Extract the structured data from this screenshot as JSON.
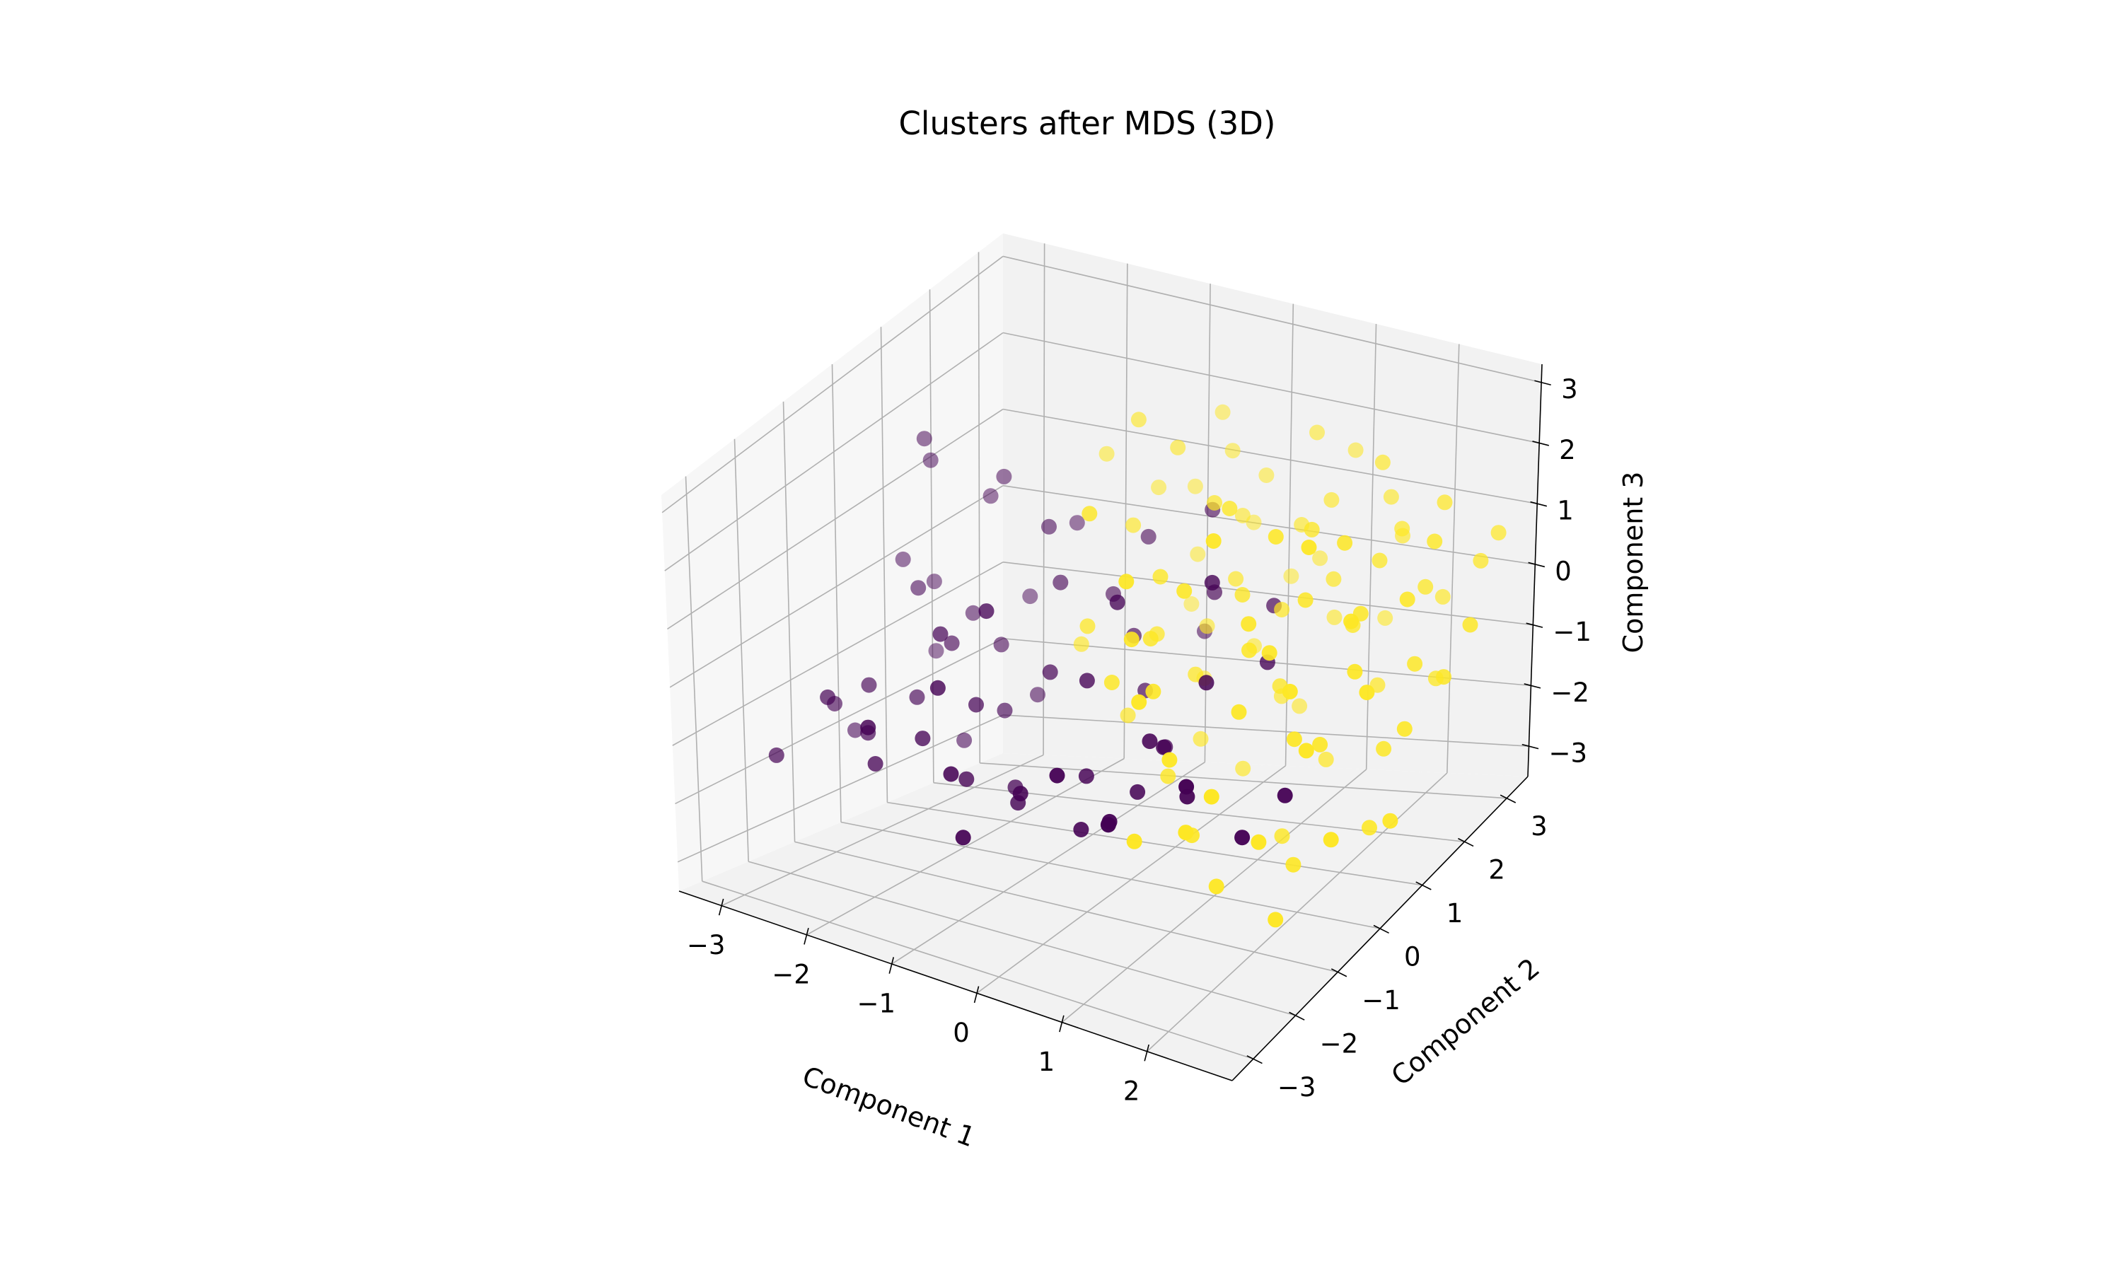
{
  "chart_data": {
    "type": "scatter",
    "title": "Clusters after MDS (3D)",
    "xlabel": "Component 1",
    "ylabel": "Component 2",
    "zlabel": "Component 3",
    "xlim": [
      -3.5,
      3.0
    ],
    "ylim": [
      -3.5,
      3.5
    ],
    "zlim": [
      -3.5,
      3.3
    ],
    "xticks": [
      -3,
      -2,
      -1,
      0,
      1,
      2
    ],
    "yticks": [
      -3,
      -2,
      -1,
      0,
      1,
      2,
      3
    ],
    "zticks": [
      -3,
      -2,
      -1,
      0,
      1,
      2,
      3
    ],
    "xtick_labels": [
      "−3",
      "−2",
      "−1",
      "0",
      "1",
      "2"
    ],
    "ytick_labels": [
      "−3",
      "−2",
      "−1",
      "0",
      "1",
      "2",
      "3"
    ],
    "ztick_labels": [
      "−3",
      "−2",
      "−1",
      "0",
      "1",
      "2",
      "3"
    ],
    "colormap": "viridis",
    "cluster_colors": [
      "#440154",
      "#fde725"
    ],
    "grid": true,
    "legend": "none",
    "points": [
      [
        -2.6,
        0.3,
        2.3,
        0
      ],
      [
        -2.7,
        0.6,
        1.8,
        0
      ],
      [
        -2.0,
        0.9,
        1.6,
        0
      ],
      [
        -2.9,
        1.0,
        -0.2,
        0
      ],
      [
        -3.1,
        0.7,
        0.2,
        0
      ],
      [
        -2.3,
        -0.4,
        0.5,
        0
      ],
      [
        -1.6,
        -1.2,
        0.4,
        0
      ],
      [
        -1.8,
        -0.6,
        -0.1,
        0
      ],
      [
        -2.0,
        -1.0,
        -0.8,
        0
      ],
      [
        -2.4,
        -1.3,
        -0.6,
        0
      ],
      [
        -2.7,
        -1.5,
        -0.9,
        0
      ],
      [
        -2.8,
        -0.9,
        -1.6,
        0
      ],
      [
        -2.5,
        -2.0,
        -0.5,
        0
      ],
      [
        -2.2,
        -1.7,
        -1.1,
        0
      ],
      [
        -1.9,
        -2.1,
        -1.3,
        0
      ],
      [
        -1.5,
        -1.8,
        -0.9,
        0
      ],
      [
        -1.3,
        -1.0,
        -0.7,
        0
      ],
      [
        -1.1,
        -1.6,
        -1.5,
        0
      ],
      [
        -0.9,
        -2.3,
        -1.0,
        0
      ],
      [
        -0.6,
        -1.4,
        -1.8,
        0
      ],
      [
        -0.3,
        -1.9,
        -1.3,
        0
      ],
      [
        0.0,
        -1.0,
        -1.4,
        0
      ],
      [
        0.2,
        -1.5,
        -1.9,
        0
      ],
      [
        0.5,
        -0.8,
        -1.6,
        0
      ],
      [
        0.8,
        -2.0,
        -1.3,
        0
      ],
      [
        1.1,
        -2.6,
        -0.9,
        0
      ],
      [
        1.3,
        -1.2,
        -1.2,
        0
      ],
      [
        1.6,
        -1.8,
        -0.6,
        0
      ],
      [
        0.6,
        -0.4,
        -1.1,
        0
      ],
      [
        0.3,
        0.2,
        -1.5,
        0
      ],
      [
        -0.1,
        0.5,
        -0.9,
        0
      ],
      [
        -0.4,
        0.8,
        -0.3,
        0
      ],
      [
        -0.7,
        0.9,
        0.2,
        0
      ],
      [
        -1.0,
        0.3,
        0.6,
        0
      ],
      [
        -1.3,
        0.6,
        1.2,
        0
      ],
      [
        -0.5,
        1.3,
        0.9,
        0
      ],
      [
        0.1,
        1.6,
        1.3,
        0
      ],
      [
        0.4,
        1.1,
        0.4,
        0
      ],
      [
        0.9,
        1.5,
        0.1,
        0
      ],
      [
        1.2,
        0.8,
        -0.3,
        0
      ],
      [
        -2.9,
        -2.4,
        -1.4,
        0
      ],
      [
        -1.7,
        -2.6,
        -0.4,
        0
      ],
      [
        -1.2,
        -2.0,
        0.1,
        0
      ],
      [
        -0.8,
        -0.3,
        -0.4,
        0
      ],
      [
        -0.2,
        -0.6,
        -0.2,
        0
      ],
      [
        0.7,
        -0.9,
        -0.7,
        0
      ],
      [
        1.9,
        -1.1,
        -1.7,
        0
      ],
      [
        -2.1,
        0.4,
        -0.2,
        0
      ],
      [
        -0.5,
        -2.8,
        -1.6,
        0
      ],
      [
        2.2,
        -0.7,
        -1.2,
        0
      ],
      [
        -1.4,
        -0.2,
        -1.2,
        0
      ],
      [
        -0.9,
        -0.9,
        -1.9,
        0
      ],
      [
        -2.0,
        0.0,
        -1.9,
        0
      ],
      [
        -1.5,
        0.7,
        -1.4,
        0
      ],
      [
        0.0,
        -0.3,
        0.9,
        0
      ],
      [
        0.8,
        0.3,
        1.1,
        0
      ],
      [
        -3.0,
        1.2,
        -1.3,
        0
      ],
      [
        -2.2,
        1.8,
        -0.6,
        0
      ],
      [
        -1.8,
        2.1,
        0.4,
        0
      ],
      [
        -2.5,
        1.5,
        0.9,
        0
      ],
      [
        -1.6,
        0.1,
        -0.4,
        0
      ],
      [
        -0.2,
        2.0,
        -0.8,
        0
      ],
      [
        0.4,
        -2.4,
        -0.5,
        0
      ],
      [
        1.0,
        -0.2,
        -0.1,
        0
      ],
      [
        -1.0,
        -1.3,
        1.0,
        0
      ],
      [
        1.5,
        1.2,
        1.6,
        1
      ],
      [
        1.8,
        0.5,
        1.0,
        1
      ],
      [
        2.2,
        1.0,
        0.6,
        1
      ],
      [
        2.5,
        0.3,
        0.2,
        1
      ],
      [
        2.0,
        1.8,
        0.9,
        1
      ],
      [
        1.2,
        2.2,
        1.4,
        1
      ],
      [
        0.8,
        2.6,
        2.1,
        1
      ],
      [
        1.6,
        2.8,
        1.2,
        1
      ],
      [
        2.4,
        2.1,
        0.4,
        1
      ],
      [
        2.6,
        1.5,
        -0.4,
        1
      ],
      [
        2.8,
        0.9,
        -1.0,
        1
      ],
      [
        2.1,
        -0.3,
        -0.6,
        1
      ],
      [
        1.7,
        -0.8,
        0.0,
        1
      ],
      [
        1.4,
        0.0,
        0.4,
        1
      ],
      [
        1.0,
        0.6,
        0.8,
        1
      ],
      [
        0.6,
        1.2,
        0.6,
        1
      ],
      [
        0.3,
        1.9,
        1.1,
        1
      ],
      [
        -0.1,
        2.4,
        1.7,
        1
      ],
      [
        -0.5,
        2.9,
        1.9,
        1
      ],
      [
        0.2,
        0.2,
        0.2,
        1
      ],
      [
        0.5,
        -0.5,
        0.6,
        1
      ],
      [
        0.9,
        -1.2,
        0.3,
        1
      ],
      [
        1.3,
        -1.6,
        -0.4,
        1
      ],
      [
        1.8,
        -2.2,
        -1.0,
        1
      ],
      [
        2.3,
        -1.5,
        -1.4,
        1
      ],
      [
        2.7,
        -0.6,
        -1.8,
        1
      ],
      [
        2.9,
        0.4,
        -2.1,
        1
      ],
      [
        2.4,
        1.2,
        -1.6,
        1
      ],
      [
        1.9,
        2.0,
        -1.2,
        1
      ],
      [
        1.1,
        2.5,
        -0.6,
        1
      ],
      [
        0.7,
        2.9,
        0.0,
        1
      ],
      [
        0.0,
        2.7,
        0.5,
        1
      ],
      [
        -0.6,
        1.7,
        1.4,
        1
      ],
      [
        -1.0,
        1.3,
        2.0,
        1
      ],
      [
        -0.3,
        0.6,
        1.5,
        1
      ],
      [
        0.4,
        -0.1,
        1.3,
        1
      ],
      [
        1.0,
        -0.7,
        1.6,
        1
      ],
      [
        1.6,
        0.2,
        2.1,
        1
      ],
      [
        2.1,
        0.8,
        1.8,
        1
      ],
      [
        2.6,
        1.9,
        1.3,
        1
      ],
      [
        2.8,
        2.6,
        0.6,
        1
      ],
      [
        2.2,
        2.9,
        -0.3,
        1
      ],
      [
        1.4,
        3.1,
        -0.9,
        1
      ],
      [
        0.9,
        1.7,
        -1.4,
        1
      ],
      [
        0.3,
        1.0,
        -1.8,
        1
      ],
      [
        -0.2,
        0.3,
        -1.2,
        1
      ],
      [
        0.6,
        -0.3,
        -1.6,
        1
      ],
      [
        1.2,
        -0.9,
        -2.0,
        1
      ],
      [
        1.7,
        -1.3,
        -2.4,
        1
      ],
      [
        2.0,
        -0.1,
        -2.7,
        1
      ],
      [
        2.5,
        0.7,
        -2.5,
        1
      ],
      [
        1.5,
        1.6,
        -2.2,
        1
      ],
      [
        0.8,
        2.3,
        -1.9,
        1
      ],
      [
        0.1,
        1.5,
        -0.4,
        1
      ],
      [
        -0.4,
        2.2,
        0.2,
        1
      ],
      [
        1.3,
        0.9,
        -0.7,
        1
      ],
      [
        1.9,
        1.4,
        0.1,
        1
      ],
      [
        2.3,
        -0.8,
        0.5,
        1
      ],
      [
        1.0,
        0.3,
        2.3,
        1
      ],
      [
        0.5,
        0.9,
        1.9,
        1
      ],
      [
        -0.1,
        1.2,
        2.4,
        1
      ],
      [
        1.7,
        2.4,
        2.0,
        1
      ],
      [
        2.4,
        2.5,
        1.5,
        1
      ],
      [
        2.7,
        1.1,
        0.9,
        1
      ],
      [
        2.9,
        -0.2,
        0.3,
        1
      ],
      [
        2.6,
        -1.0,
        -0.2,
        1
      ],
      [
        1.1,
        -1.9,
        0.6,
        1
      ],
      [
        0.7,
        -1.3,
        1.1,
        1
      ],
      [
        0.2,
        -0.8,
        0.0,
        1
      ],
      [
        -0.3,
        -0.4,
        0.5,
        1
      ],
      [
        -0.7,
        0.2,
        -0.2,
        1
      ],
      [
        1.4,
        1.9,
        0.4,
        1
      ],
      [
        2.0,
        2.3,
        1.1,
        1
      ],
      [
        0.4,
        2.0,
        -0.9,
        1
      ],
      [
        1.6,
        -0.4,
        1.1,
        1
      ],
      [
        2.2,
        0.1,
        -0.9,
        1
      ],
      [
        2.9,
        1.6,
        -0.6,
        1
      ],
      [
        2.5,
        2.2,
        -1.1,
        1
      ],
      [
        1.8,
        2.7,
        0.7,
        1
      ],
      [
        0.9,
        2.1,
        1.0,
        1
      ],
      [
        0.2,
        2.6,
        1.3,
        1
      ],
      [
        -0.6,
        2.5,
        1.0,
        1
      ],
      [
        1.3,
        -2.4,
        -1.2,
        1
      ],
      [
        2.0,
        -2.0,
        -0.5,
        1
      ],
      [
        0.5,
        0.5,
        -0.5,
        1
      ],
      [
        1.1,
        1.3,
        0.2,
        1
      ],
      [
        1.9,
        -0.5,
        0.8,
        1
      ],
      [
        2.6,
        0.0,
        1.2,
        1
      ],
      [
        3.0,
        2.0,
        0.0,
        1
      ],
      [
        2.8,
        3.0,
        0.8,
        1
      ],
      [
        1.0,
        3.1,
        1.6,
        1
      ],
      [
        0.3,
        3.0,
        -0.4,
        1
      ],
      [
        -0.8,
        2.8,
        -0.9,
        1
      ],
      [
        -0.2,
        2.0,
        -1.5,
        1
      ],
      [
        0.6,
        1.4,
        -2.4,
        1
      ],
      [
        1.5,
        0.6,
        -2.8,
        1
      ],
      [
        2.2,
        -0.9,
        -3.0,
        1
      ],
      [
        0.0,
        -0.9,
        2.6,
        1
      ],
      [
        0.8,
        -1.6,
        2.2,
        1
      ],
      [
        1.5,
        -1.0,
        2.7,
        1
      ],
      [
        2.3,
        -0.4,
        2.5,
        1
      ],
      [
        -0.4,
        0.9,
        2.9,
        1
      ]
    ]
  }
}
